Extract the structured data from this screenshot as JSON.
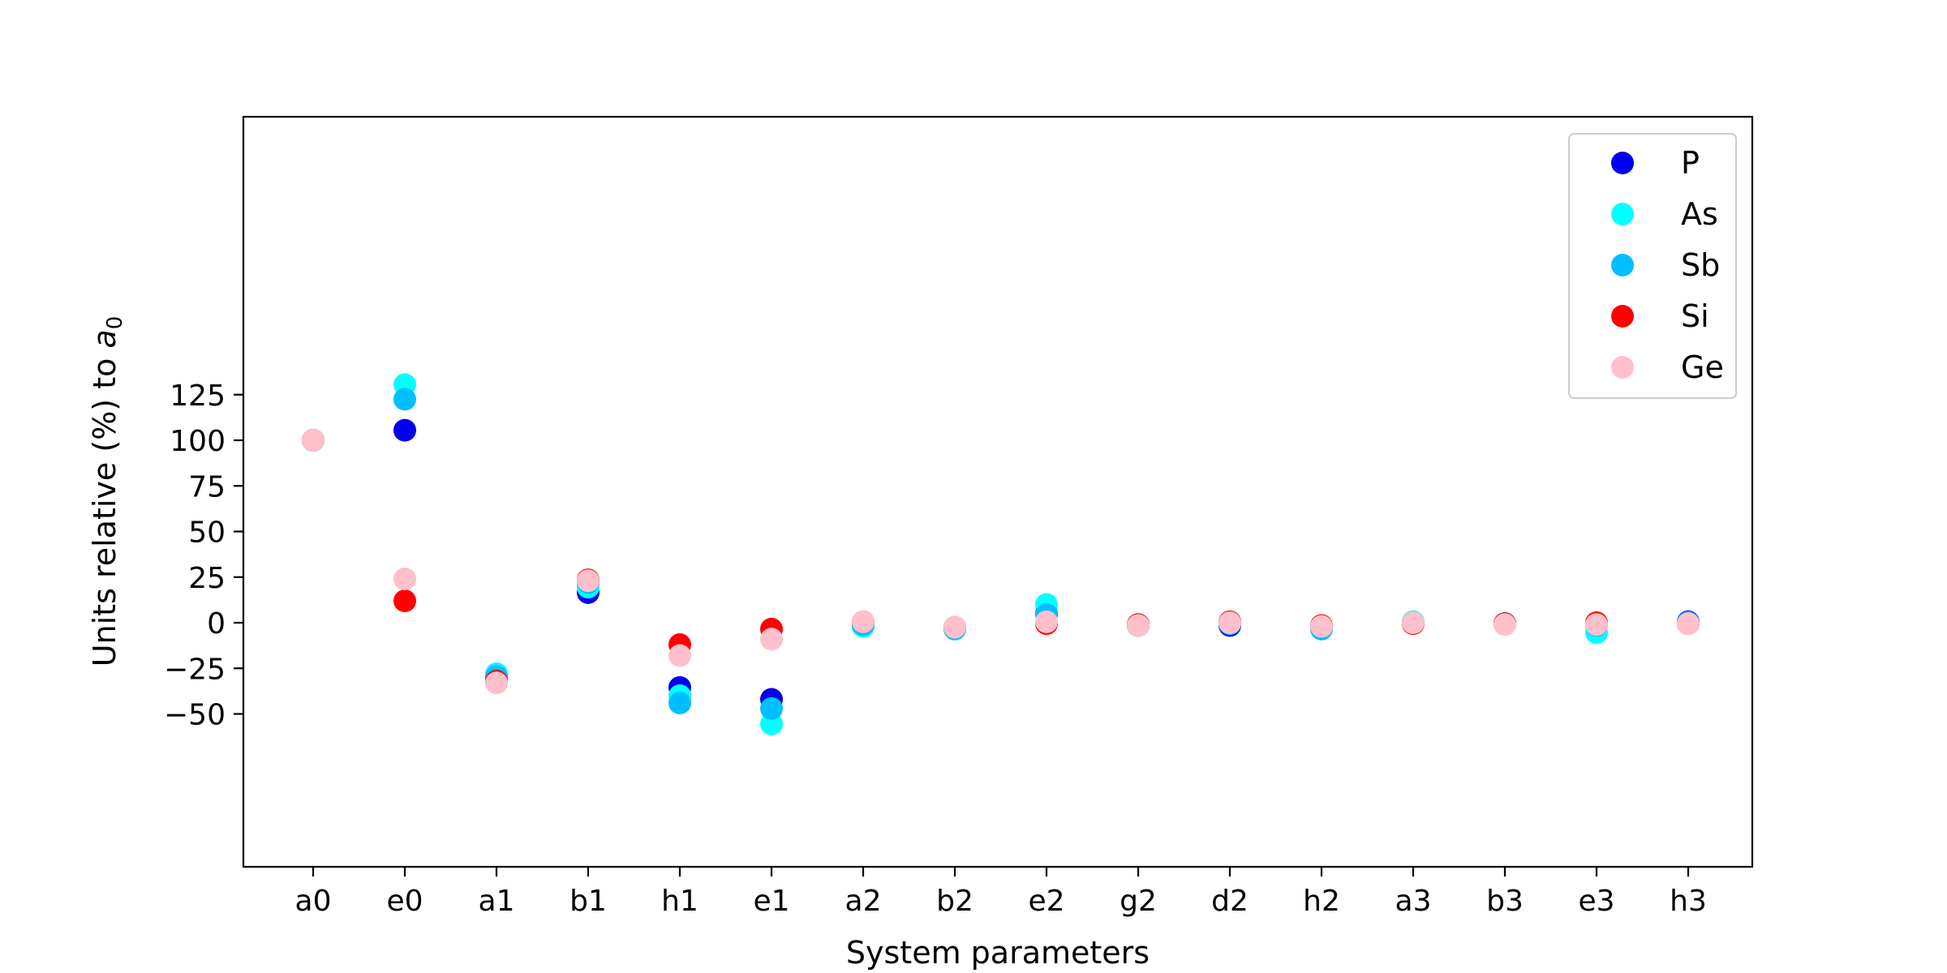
{
  "chart_data": {
    "type": "scatter",
    "title": "",
    "xlabel": "System parameters",
    "ylabel": {
      "prefix": "Units relative (%) to ",
      "var": "a",
      "sub": "0"
    },
    "categories": [
      "a0",
      "e0",
      "a1",
      "b1",
      "h1",
      "e1",
      "a2",
      "b2",
      "e2",
      "g2",
      "d2",
      "h2",
      "a3",
      "b3",
      "e3",
      "h3"
    ],
    "ylim": [
      -65,
      140
    ],
    "yticks": [
      125,
      100,
      75,
      50,
      25,
      0,
      -25,
      -50
    ],
    "legend_position": "top-right",
    "grid": false,
    "series": [
      {
        "name": "P",
        "color": "#0000ee",
        "values": [
          100,
          105.5,
          -30,
          16.5,
          -35.5,
          -42,
          -0.5,
          -3,
          5,
          -1.5,
          -1.5,
          -2.5,
          0,
          -0.5,
          -1,
          0.5
        ]
      },
      {
        "name": "As",
        "color": "#00ffff",
        "values": [
          100,
          130.5,
          -28,
          19.5,
          -40,
          -55.5,
          -2,
          -3,
          10,
          -1,
          -0.5,
          -2.5,
          0.5,
          -0.5,
          -5.5,
          0
        ]
      },
      {
        "name": "Sb",
        "color": "#00bfff",
        "values": [
          100,
          122.5,
          -29.5,
          22,
          -44,
          -47,
          -1,
          -3.5,
          4.5,
          -1.5,
          -0.5,
          -3.5,
          0,
          -0.5,
          -1.5,
          0
        ]
      },
      {
        "name": "Si",
        "color": "#ff0000",
        "values": [
          100,
          12,
          -32,
          23.5,
          -12,
          -3.5,
          0.5,
          -2.5,
          -0.5,
          -1,
          0.5,
          -1.5,
          -0.5,
          -0.5,
          0,
          -0.5
        ]
      },
      {
        "name": "Ge",
        "color": "#ffc0cb",
        "values": [
          100,
          24,
          -33,
          23,
          -18,
          -9,
          0.5,
          -2.5,
          0.5,
          -1.5,
          0,
          -2,
          0,
          -1,
          -1,
          -0.5
        ]
      }
    ]
  }
}
